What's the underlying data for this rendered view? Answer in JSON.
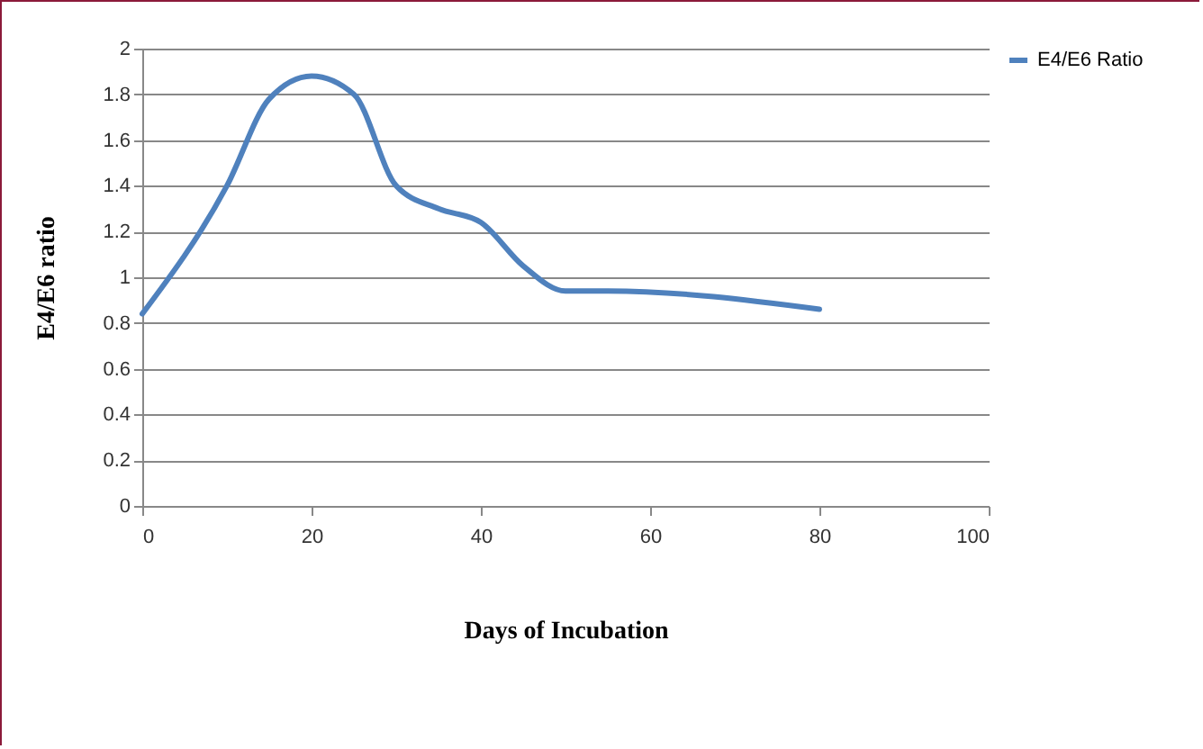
{
  "chart_data": {
    "type": "line",
    "xlabel": "Days of Incubation",
    "ylabel": "E4/E6 ratio",
    "x": [
      0,
      10,
      15,
      20,
      25,
      30,
      35,
      40,
      45,
      50,
      55,
      80
    ],
    "series": [
      {
        "name": "E4/E6 Ratio",
        "color": "#4f81bd",
        "values": [
          0.84,
          1.4,
          1.78,
          1.88,
          1.8,
          1.4,
          1.3,
          1.24,
          1.05,
          0.94,
          0.94,
          0.86
        ]
      }
    ],
    "xlim": [
      0,
      100
    ],
    "xticks": [
      0,
      20,
      40,
      60,
      80,
      100
    ],
    "ylim": [
      0,
      2
    ],
    "yticks": [
      0,
      0.2,
      0.4,
      0.6,
      0.8,
      1,
      1.2,
      1.4,
      1.6,
      1.8,
      2
    ],
    "grid": "y",
    "legend": "right",
    "marker": "none",
    "line_style": "solid"
  }
}
